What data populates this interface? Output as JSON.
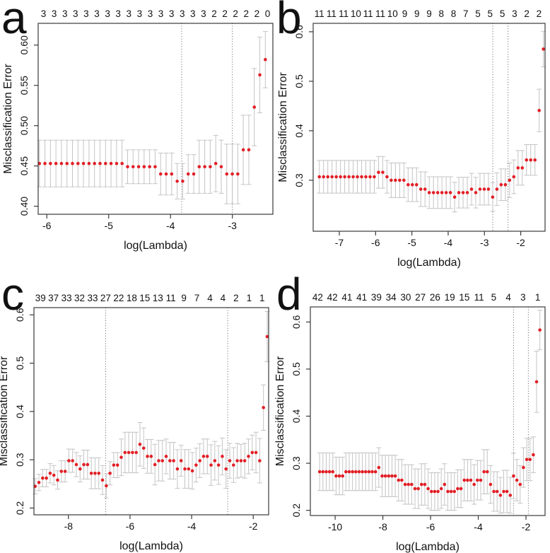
{
  "figure": {
    "panel_count": 4,
    "colors": {
      "background": "#ffffff",
      "point": "#e21f26",
      "error_bar": "#c4c4c4",
      "vline": "#5a5a5a",
      "box": "#3a3a3a",
      "text": "#111111"
    }
  },
  "chart_data": [
    {
      "id": "a",
      "type": "scatter",
      "panel_label": "a",
      "xlabel": "log(Lambda)",
      "ylabel": "Misclassification Error",
      "legend": "none",
      "grid": false,
      "top_axis_counts": [
        3,
        3,
        3,
        3,
        3,
        3,
        3,
        3,
        3,
        3,
        3,
        3,
        3,
        3,
        3,
        3,
        2,
        2,
        2,
        2,
        2,
        0
      ],
      "xlim": [
        -6.14,
        -2.345
      ],
      "ylim": [
        0.39,
        0.627
      ],
      "x_ticks": [
        -6,
        -5,
        -4,
        -3
      ],
      "x_tick_labels": [
        "-6",
        "-5",
        "-4",
        "-3"
      ],
      "y_ticks": [
        0.4,
        0.45,
        0.5,
        0.55,
        0.6
      ],
      "y_tick_labels": [
        "0.40",
        "0.45",
        "0.50",
        "0.55",
        "0.60"
      ],
      "x_start": -6.12,
      "x_step": 0.0891,
      "values": [
        0.453,
        0.453,
        0.453,
        0.453,
        0.453,
        0.453,
        0.453,
        0.453,
        0.453,
        0.453,
        0.453,
        0.453,
        0.453,
        0.453,
        0.453,
        0.453,
        0.449,
        0.449,
        0.449,
        0.449,
        0.449,
        0.449,
        0.44,
        0.44,
        0.44,
        0.431,
        0.431,
        0.44,
        0.44,
        0.449,
        0.449,
        0.449,
        0.453,
        0.449,
        0.44,
        0.44,
        0.44,
        0.47,
        0.47,
        0.523,
        0.563,
        0.582
      ],
      "se": [
        0.029,
        0.029,
        0.029,
        0.029,
        0.029,
        0.029,
        0.029,
        0.029,
        0.029,
        0.029,
        0.029,
        0.029,
        0.029,
        0.029,
        0.029,
        0.029,
        0.021,
        0.021,
        0.021,
        0.021,
        0.021,
        0.021,
        0.026,
        0.026,
        0.026,
        0.022,
        0.022,
        0.024,
        0.024,
        0.033,
        0.033,
        0.033,
        0.035,
        0.033,
        0.037,
        0.037,
        0.037,
        0.043,
        0.043,
        0.048,
        0.047,
        0.035
      ],
      "vline_lambda_min": -3.82,
      "vline_lambda_1se": -3.0
    },
    {
      "id": "b",
      "type": "scatter",
      "panel_label": "b",
      "xlabel": "log(Lambda)",
      "ylabel": "Misclassification Error",
      "legend": "none",
      "grid": false,
      "top_axis_counts": [
        11,
        11,
        11,
        10,
        11,
        11,
        10,
        9,
        9,
        9,
        8,
        8,
        7,
        5,
        5,
        5,
        3,
        2,
        2
      ],
      "xlim": [
        -7.72,
        -1.33
      ],
      "ylim": [
        0.197,
        0.617
      ],
      "x_ticks": [
        -7,
        -6,
        -5,
        -4,
        -3,
        -2
      ],
      "x_tick_labels": [
        "-7",
        "-6",
        "-5",
        "-4",
        "-3",
        "-2"
      ],
      "y_ticks": [
        0.3,
        0.4,
        0.5,
        0.6
      ],
      "y_tick_labels": [
        "0.3",
        "0.4",
        "0.5",
        "0.6"
      ],
      "x_start": -7.55,
      "x_step": 0.1165,
      "values": [
        0.307,
        0.307,
        0.307,
        0.307,
        0.307,
        0.307,
        0.307,
        0.307,
        0.307,
        0.307,
        0.307,
        0.307,
        0.307,
        0.307,
        0.316,
        0.316,
        0.307,
        0.3,
        0.3,
        0.3,
        0.3,
        0.291,
        0.291,
        0.291,
        0.282,
        0.282,
        0.275,
        0.275,
        0.275,
        0.275,
        0.275,
        0.275,
        0.266,
        0.275,
        0.275,
        0.275,
        0.282,
        0.275,
        0.282,
        0.282,
        0.282,
        0.266,
        0.282,
        0.291,
        0.291,
        0.3,
        0.307,
        0.325,
        0.325,
        0.341,
        0.341,
        0.341,
        0.441,
        0.565
      ],
      "se": [
        0.033,
        0.033,
        0.033,
        0.033,
        0.033,
        0.033,
        0.033,
        0.033,
        0.033,
        0.033,
        0.033,
        0.033,
        0.033,
        0.033,
        0.032,
        0.032,
        0.033,
        0.035,
        0.035,
        0.035,
        0.035,
        0.034,
        0.034,
        0.034,
        0.035,
        0.035,
        0.032,
        0.032,
        0.032,
        0.032,
        0.032,
        0.032,
        0.03,
        0.031,
        0.031,
        0.031,
        0.032,
        0.031,
        0.032,
        0.032,
        0.032,
        0.029,
        0.033,
        0.032,
        0.032,
        0.035,
        0.034,
        0.035,
        0.035,
        0.031,
        0.031,
        0.031,
        0.043,
        0.036
      ],
      "vline_lambda_min": -2.77,
      "vline_lambda_1se": -2.35
    },
    {
      "id": "c",
      "type": "scatter",
      "panel_label": "c",
      "xlabel": "log(Lambda)",
      "ylabel": "Misclassification Error",
      "legend": "none",
      "grid": false,
      "top_axis_counts": [
        39,
        37,
        33,
        32,
        33,
        27,
        22,
        18,
        15,
        13,
        11,
        9,
        7,
        4,
        4,
        2,
        1,
        1
      ],
      "xlim": [
        -9.12,
        -1.5
      ],
      "ylim": [
        0.186,
        0.615
      ],
      "x_ticks": [
        -8,
        -6,
        -4,
        -2
      ],
      "x_tick_labels": [
        "-8",
        "-6",
        "-4",
        "-2"
      ],
      "y_ticks": [
        0.2,
        0.3,
        0.4,
        0.5,
        0.6
      ],
      "y_tick_labels": [
        "0.2",
        "0.3",
        "0.4",
        "0.5",
        "0.6"
      ],
      "x_start": -9.08,
      "x_step": 0.1215,
      "values": [
        0.245,
        0.253,
        0.262,
        0.262,
        0.272,
        0.268,
        0.258,
        0.276,
        0.276,
        0.298,
        0.298,
        0.29,
        0.281,
        0.29,
        0.29,
        0.272,
        0.272,
        0.272,
        0.258,
        0.246,
        0.272,
        0.289,
        0.289,
        0.305,
        0.315,
        0.315,
        0.315,
        0.315,
        0.332,
        0.324,
        0.307,
        0.307,
        0.29,
        0.298,
        0.298,
        0.307,
        0.298,
        0.298,
        0.281,
        0.298,
        0.281,
        0.281,
        0.277,
        0.289,
        0.298,
        0.307,
        0.307,
        0.289,
        0.298,
        0.289,
        0.307,
        0.281,
        0.298,
        0.289,
        0.298,
        0.298,
        0.298,
        0.307,
        0.315,
        0.315,
        0.298,
        0.408,
        0.555
      ],
      "se": [
        0.016,
        0.017,
        0.018,
        0.018,
        0.02,
        0.02,
        0.019,
        0.022,
        0.022,
        0.024,
        0.024,
        0.025,
        0.027,
        0.03,
        0.03,
        0.032,
        0.032,
        0.032,
        0.03,
        0.025,
        0.024,
        0.026,
        0.026,
        0.038,
        0.042,
        0.042,
        0.042,
        0.042,
        0.045,
        0.042,
        0.035,
        0.035,
        0.042,
        0.042,
        0.042,
        0.036,
        0.038,
        0.038,
        0.04,
        0.032,
        0.04,
        0.04,
        0.038,
        0.035,
        0.035,
        0.036,
        0.036,
        0.042,
        0.04,
        0.04,
        0.038,
        0.04,
        0.036,
        0.036,
        0.036,
        0.034,
        0.036,
        0.036,
        0.036,
        0.042,
        0.046,
        0.047,
        0.052
      ],
      "vline_lambda_min": -6.79,
      "vline_lambda_1se": -2.83
    },
    {
      "id": "d",
      "type": "scatter",
      "panel_label": "d",
      "xlabel": "log(Lambda)",
      "ylabel": "Misclassification Error",
      "legend": "none",
      "grid": false,
      "top_axis_counts": [
        42,
        42,
        41,
        41,
        39,
        34,
        30,
        27,
        26,
        19,
        15,
        11,
        5,
        4,
        3,
        1
      ],
      "xlim": [
        -11.04,
        -1.2
      ],
      "ylim": [
        0.189,
        0.632
      ],
      "x_ticks": [
        -10,
        -8,
        -6,
        -4,
        -2
      ],
      "x_tick_labels": [
        "-10",
        "-8",
        "-6",
        "-4",
        "-2"
      ],
      "y_ticks": [
        0.2,
        0.3,
        0.4,
        0.5,
        0.6
      ],
      "y_tick_labels": [
        "0.2",
        "0.3",
        "0.4",
        "0.5",
        "0.6"
      ],
      "x_start": -10.65,
      "x_step": 0.1378,
      "values": [
        0.282,
        0.282,
        0.282,
        0.282,
        0.282,
        0.273,
        0.273,
        0.273,
        0.282,
        0.282,
        0.282,
        0.282,
        0.282,
        0.282,
        0.282,
        0.282,
        0.282,
        0.282,
        0.291,
        0.273,
        0.273,
        0.273,
        0.273,
        0.273,
        0.264,
        0.264,
        0.255,
        0.255,
        0.255,
        0.246,
        0.246,
        0.255,
        0.255,
        0.246,
        0.24,
        0.24,
        0.24,
        0.246,
        0.255,
        0.24,
        0.24,
        0.24,
        0.246,
        0.246,
        0.264,
        0.264,
        0.264,
        0.255,
        0.264,
        0.264,
        0.282,
        0.282,
        0.255,
        0.24,
        0.24,
        0.232,
        0.24,
        0.24,
        0.232,
        0.273,
        0.264,
        0.255,
        0.291,
        0.308,
        0.308,
        0.318,
        0.473,
        0.583
      ],
      "se": [
        0.04,
        0.04,
        0.04,
        0.04,
        0.04,
        0.04,
        0.04,
        0.04,
        0.04,
        0.04,
        0.04,
        0.04,
        0.04,
        0.04,
        0.04,
        0.04,
        0.04,
        0.04,
        0.042,
        0.044,
        0.044,
        0.044,
        0.044,
        0.044,
        0.044,
        0.044,
        0.042,
        0.042,
        0.042,
        0.042,
        0.042,
        0.044,
        0.044,
        0.042,
        0.04,
        0.04,
        0.04,
        0.042,
        0.044,
        0.04,
        0.04,
        0.04,
        0.04,
        0.04,
        0.044,
        0.044,
        0.044,
        0.042,
        0.042,
        0.042,
        0.047,
        0.047,
        0.04,
        0.042,
        0.042,
        0.038,
        0.045,
        0.045,
        0.038,
        0.048,
        0.044,
        0.04,
        0.042,
        0.045,
        0.045,
        0.038,
        0.065,
        0.042
      ],
      "vline_lambda_min": -2.52,
      "vline_lambda_1se": -1.9
    }
  ]
}
